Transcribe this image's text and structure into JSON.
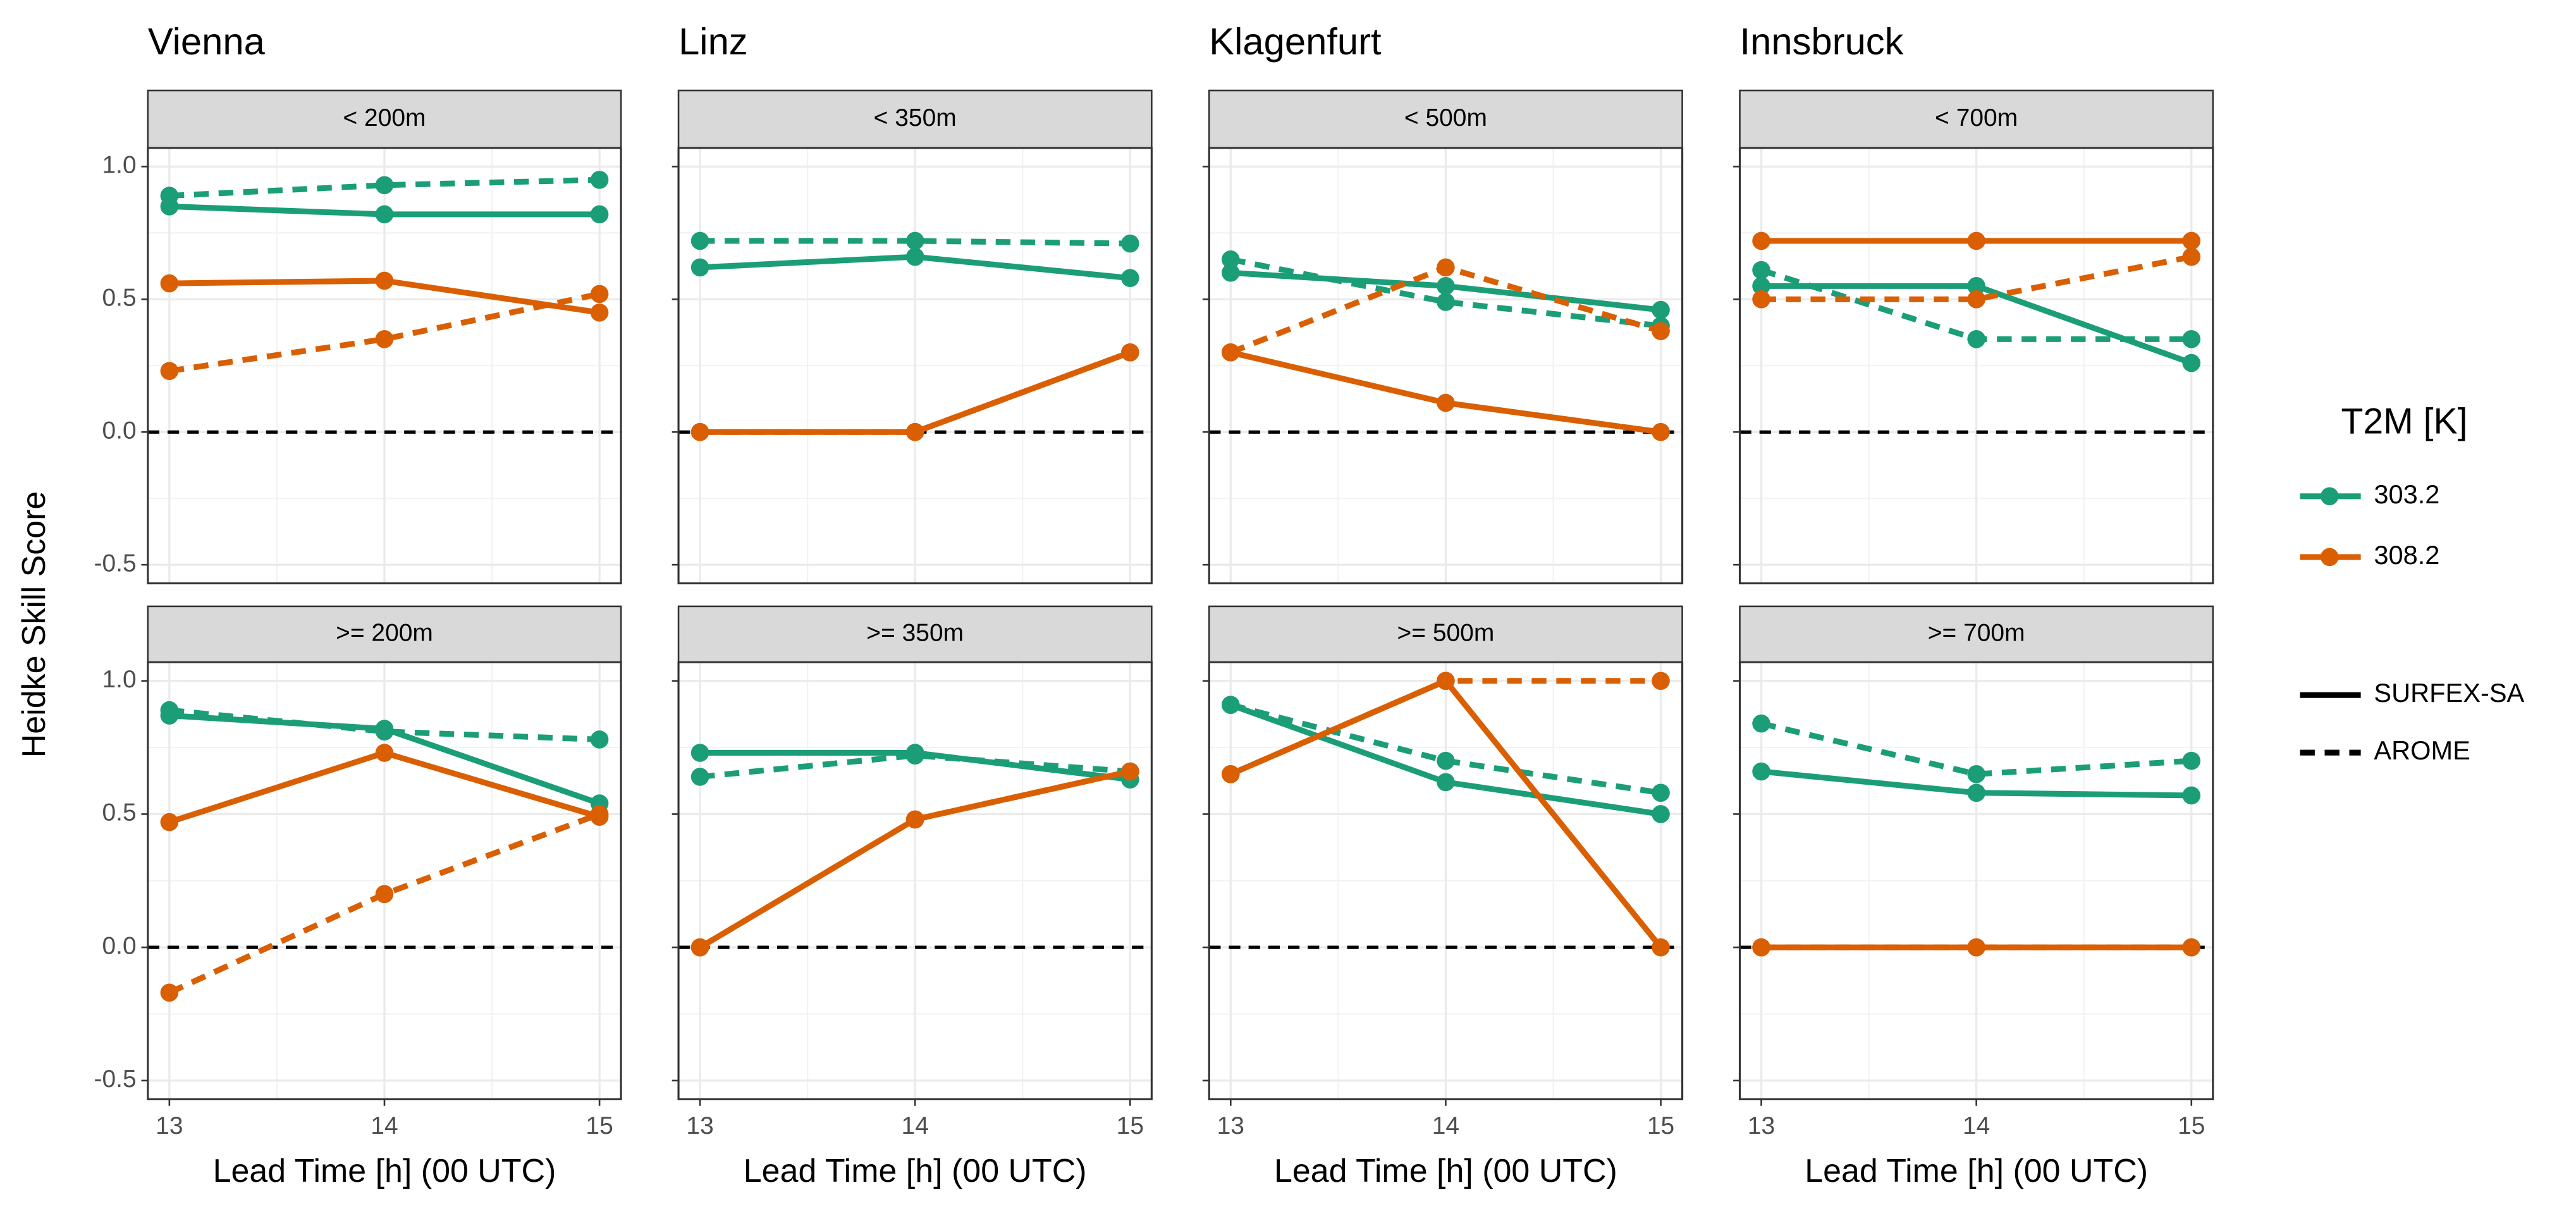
{
  "chart_data": {
    "type": "line",
    "ylabel": "Heidke Skill Score",
    "xlabel": "Lead Time [h] (00 UTC)",
    "x": [
      13,
      14,
      15
    ],
    "xlim": [
      12.9,
      15.1
    ],
    "xticks": [
      13,
      14,
      15
    ],
    "ylim": [
      -0.57,
      1.07
    ],
    "yticks": [
      -0.5,
      {
        "value": 0,
        "label": "0.0"
      },
      0.5,
      {
        "value": 1,
        "label": "1.0"
      }
    ],
    "hline": 0,
    "grid": true,
    "legend": {
      "color_title": "T2M [K]",
      "colors": [
        {
          "label": "303.2",
          "color": "#1b9e77"
        },
        {
          "label": "308.2",
          "color": "#d95f02"
        }
      ],
      "linetypes": [
        {
          "label": "SURFEX-SA",
          "dash": "solid"
        },
        {
          "label": "AROME",
          "dash": "dashed"
        }
      ]
    },
    "columns": [
      {
        "title": "Vienna",
        "panels": [
          {
            "strip": "< 200m",
            "series": [
              {
                "t2m": "303.2",
                "model": "SURFEX-SA",
                "values": [
                  0.85,
                  0.82,
                  0.82
                ]
              },
              {
                "t2m": "303.2",
                "model": "AROME",
                "values": [
                  0.89,
                  0.93,
                  0.95
                ]
              },
              {
                "t2m": "308.2",
                "model": "SURFEX-SA",
                "values": [
                  0.56,
                  0.57,
                  0.45
                ]
              },
              {
                "t2m": "308.2",
                "model": "AROME",
                "values": [
                  0.23,
                  0.35,
                  0.52
                ]
              }
            ]
          },
          {
            "strip": ">= 200m",
            "series": [
              {
                "t2m": "303.2",
                "model": "SURFEX-SA",
                "values": [
                  0.87,
                  0.82,
                  0.54
                ]
              },
              {
                "t2m": "303.2",
                "model": "AROME",
                "values": [
                  0.89,
                  0.81,
                  0.78
                ]
              },
              {
                "t2m": "308.2",
                "model": "SURFEX-SA",
                "values": [
                  0.47,
                  0.73,
                  0.49
                ]
              },
              {
                "t2m": "308.2",
                "model": "AROME",
                "values": [
                  -0.17,
                  0.2,
                  0.5
                ]
              }
            ]
          }
        ]
      },
      {
        "title": "Linz",
        "panels": [
          {
            "strip": "< 350m",
            "series": [
              {
                "t2m": "303.2",
                "model": "SURFEX-SA",
                "values": [
                  0.62,
                  0.66,
                  0.58
                ]
              },
              {
                "t2m": "303.2",
                "model": "AROME",
                "values": [
                  0.72,
                  0.72,
                  0.71
                ]
              },
              {
                "t2m": "308.2",
                "model": "SURFEX-SA",
                "values": [
                  0,
                  0,
                  0.3
                ]
              },
              {
                "t2m": "308.2",
                "model": "AROME",
                "values": [
                  0,
                  0,
                  0.3
                ]
              }
            ]
          },
          {
            "strip": ">= 350m",
            "series": [
              {
                "t2m": "303.2",
                "model": "SURFEX-SA",
                "values": [
                  0.73,
                  0.73,
                  0.63
                ]
              },
              {
                "t2m": "303.2",
                "model": "AROME",
                "values": [
                  0.64,
                  0.72,
                  0.66
                ]
              },
              {
                "t2m": "308.2",
                "model": "SURFEX-SA",
                "values": [
                  0,
                  0.48,
                  0.66
                ]
              },
              {
                "t2m": "308.2",
                "model": "AROME",
                "values": [
                  0,
                  0.48,
                  0.66
                ]
              }
            ]
          }
        ]
      },
      {
        "title": "Klagenfurt",
        "panels": [
          {
            "strip": "< 500m",
            "series": [
              {
                "t2m": "303.2",
                "model": "SURFEX-SA",
                "values": [
                  0.6,
                  0.55,
                  0.46
                ]
              },
              {
                "t2m": "303.2",
                "model": "AROME",
                "values": [
                  0.65,
                  0.49,
                  0.4
                ]
              },
              {
                "t2m": "308.2",
                "model": "SURFEX-SA",
                "values": [
                  0.3,
                  0.11,
                  0
                ]
              },
              {
                "t2m": "308.2",
                "model": "AROME",
                "values": [
                  0.3,
                  0.62,
                  0.38
                ]
              }
            ]
          },
          {
            "strip": ">= 500m",
            "series": [
              {
                "t2m": "303.2",
                "model": "SURFEX-SA",
                "values": [
                  0.91,
                  0.62,
                  0.5
                ]
              },
              {
                "t2m": "303.2",
                "model": "AROME",
                "values": [
                  0.91,
                  0.7,
                  0.58
                ]
              },
              {
                "t2m": "308.2",
                "model": "SURFEX-SA",
                "values": [
                  0.65,
                  1,
                  0
                ]
              },
              {
                "t2m": "308.2",
                "model": "AROME",
                "values": [
                  0.65,
                  1,
                  1
                ]
              }
            ]
          }
        ]
      },
      {
        "title": "Innsbruck",
        "panels": [
          {
            "strip": "< 700m",
            "series": [
              {
                "t2m": "303.2",
                "model": "SURFEX-SA",
                "values": [
                  0.55,
                  0.55,
                  0.26
                ]
              },
              {
                "t2m": "303.2",
                "model": "AROME",
                "values": [
                  0.61,
                  0.35,
                  0.35
                ]
              },
              {
                "t2m": "308.2",
                "model": "SURFEX-SA",
                "values": [
                  0.72,
                  0.72,
                  0.72
                ]
              },
              {
                "t2m": "308.2",
                "model": "AROME",
                "values": [
                  0.5,
                  0.5,
                  0.66
                ]
              }
            ]
          },
          {
            "strip": ">= 700m",
            "series": [
              {
                "t2m": "303.2",
                "model": "SURFEX-SA",
                "values": [
                  0.66,
                  0.58,
                  0.57
                ]
              },
              {
                "t2m": "303.2",
                "model": "AROME",
                "values": [
                  0.84,
                  0.65,
                  0.7
                ]
              },
              {
                "t2m": "308.2",
                "model": "SURFEX-SA",
                "values": [
                  0,
                  0,
                  0
                ]
              },
              {
                "t2m": "308.2",
                "model": "AROME",
                "values": [
                  0,
                  0,
                  0
                ]
              }
            ]
          }
        ]
      }
    ]
  }
}
